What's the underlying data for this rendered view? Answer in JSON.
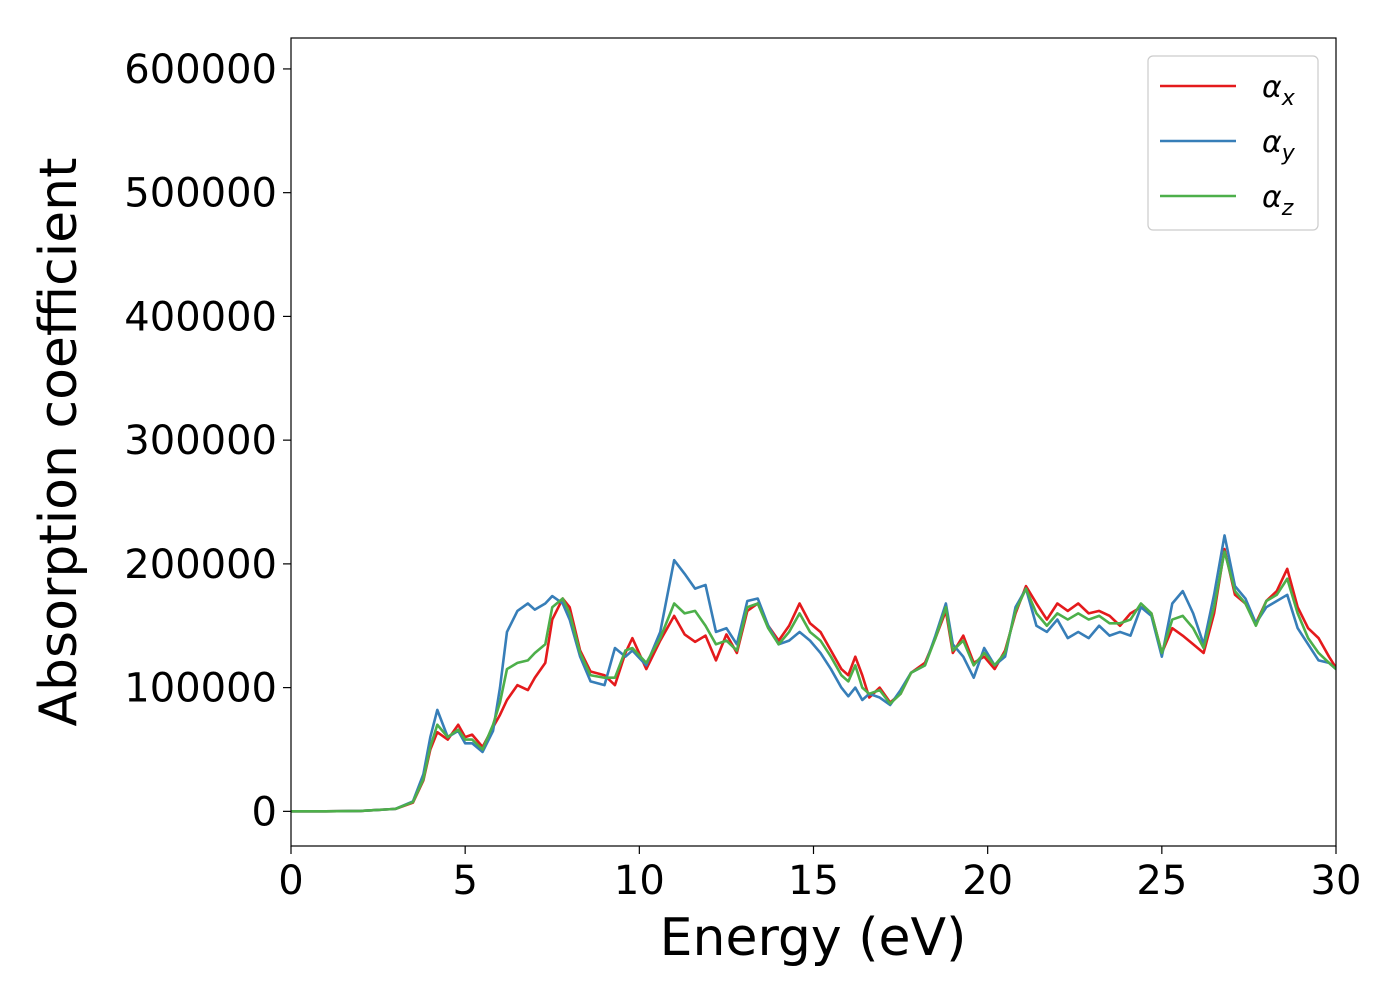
{
  "chart_data": {
    "type": "line",
    "title": "",
    "xlabel": "Energy (eV)",
    "ylabel": "Absorption coefficient",
    "xlim": [
      0,
      30
    ],
    "ylim": [
      -28000,
      625000
    ],
    "xticks": [
      0,
      5,
      10,
      15,
      20,
      25,
      30
    ],
    "yticks": [
      0,
      100000,
      200000,
      300000,
      400000,
      500000,
      600000
    ],
    "grid": false,
    "legend": {
      "position": "top-right",
      "entries": [
        {
          "base": "α",
          "sub": "x",
          "color": "#e41a1c"
        },
        {
          "base": "α",
          "sub": "y",
          "color": "#377eb8"
        },
        {
          "base": "α",
          "sub": "z",
          "color": "#4daf4a"
        }
      ]
    },
    "series": [
      {
        "name": "αx",
        "color": "#e41a1c",
        "points": [
          [
            0,
            0
          ],
          [
            1,
            0
          ],
          [
            2,
            300
          ],
          [
            3,
            2000
          ],
          [
            3.5,
            7000
          ],
          [
            3.8,
            25000
          ],
          [
            4.0,
            50000
          ],
          [
            4.2,
            64000
          ],
          [
            4.5,
            58000
          ],
          [
            4.8,
            70000
          ],
          [
            5.0,
            60000
          ],
          [
            5.2,
            62000
          ],
          [
            5.5,
            52000
          ],
          [
            5.8,
            68000
          ],
          [
            6.0,
            78000
          ],
          [
            6.2,
            90000
          ],
          [
            6.5,
            102000
          ],
          [
            6.8,
            98000
          ],
          [
            7.0,
            108000
          ],
          [
            7.3,
            120000
          ],
          [
            7.5,
            155000
          ],
          [
            7.8,
            172000
          ],
          [
            8.0,
            165000
          ],
          [
            8.3,
            130000
          ],
          [
            8.6,
            113000
          ],
          [
            9.0,
            110000
          ],
          [
            9.3,
            102000
          ],
          [
            9.6,
            128000
          ],
          [
            9.8,
            140000
          ],
          [
            10.2,
            115000
          ],
          [
            10.6,
            138000
          ],
          [
            11.0,
            158000
          ],
          [
            11.3,
            143000
          ],
          [
            11.6,
            137000
          ],
          [
            11.9,
            142000
          ],
          [
            12.2,
            122000
          ],
          [
            12.5,
            143000
          ],
          [
            12.8,
            128000
          ],
          [
            13.1,
            162000
          ],
          [
            13.4,
            168000
          ],
          [
            13.7,
            150000
          ],
          [
            14.0,
            138000
          ],
          [
            14.3,
            150000
          ],
          [
            14.6,
            168000
          ],
          [
            14.9,
            152000
          ],
          [
            15.2,
            145000
          ],
          [
            15.5,
            130000
          ],
          [
            15.8,
            115000
          ],
          [
            16.0,
            110000
          ],
          [
            16.2,
            125000
          ],
          [
            16.4,
            110000
          ],
          [
            16.6,
            92000
          ],
          [
            16.9,
            100000
          ],
          [
            17.2,
            88000
          ],
          [
            17.5,
            95000
          ],
          [
            17.8,
            112000
          ],
          [
            18.2,
            120000
          ],
          [
            18.5,
            140000
          ],
          [
            18.8,
            162000
          ],
          [
            19.0,
            128000
          ],
          [
            19.3,
            142000
          ],
          [
            19.6,
            120000
          ],
          [
            19.9,
            125000
          ],
          [
            20.2,
            115000
          ],
          [
            20.5,
            130000
          ],
          [
            20.8,
            160000
          ],
          [
            21.1,
            182000
          ],
          [
            21.4,
            168000
          ],
          [
            21.7,
            155000
          ],
          [
            22.0,
            168000
          ],
          [
            22.3,
            162000
          ],
          [
            22.6,
            168000
          ],
          [
            22.9,
            160000
          ],
          [
            23.2,
            162000
          ],
          [
            23.5,
            158000
          ],
          [
            23.8,
            150000
          ],
          [
            24.1,
            160000
          ],
          [
            24.4,
            165000
          ],
          [
            24.7,
            160000
          ],
          [
            25.0,
            128000
          ],
          [
            25.3,
            148000
          ],
          [
            25.6,
            142000
          ],
          [
            25.9,
            135000
          ],
          [
            26.2,
            128000
          ],
          [
            26.5,
            160000
          ],
          [
            26.8,
            212000
          ],
          [
            27.1,
            175000
          ],
          [
            27.4,
            168000
          ],
          [
            27.7,
            152000
          ],
          [
            28.0,
            170000
          ],
          [
            28.3,
            178000
          ],
          [
            28.6,
            196000
          ],
          [
            28.9,
            165000
          ],
          [
            29.2,
            148000
          ],
          [
            29.5,
            140000
          ],
          [
            29.8,
            125000
          ],
          [
            30.0,
            116000
          ]
        ]
      },
      {
        "name": "αy",
        "color": "#377eb8",
        "points": [
          [
            0,
            0
          ],
          [
            1,
            0
          ],
          [
            2,
            300
          ],
          [
            3,
            2000
          ],
          [
            3.5,
            8000
          ],
          [
            3.8,
            30000
          ],
          [
            4.0,
            60000
          ],
          [
            4.2,
            82000
          ],
          [
            4.5,
            60000
          ],
          [
            4.8,
            65000
          ],
          [
            5.0,
            55000
          ],
          [
            5.2,
            55000
          ],
          [
            5.5,
            48000
          ],
          [
            5.8,
            65000
          ],
          [
            6.0,
            100000
          ],
          [
            6.2,
            145000
          ],
          [
            6.5,
            162000
          ],
          [
            6.8,
            168000
          ],
          [
            7.0,
            163000
          ],
          [
            7.3,
            168000
          ],
          [
            7.5,
            174000
          ],
          [
            7.8,
            168000
          ],
          [
            8.0,
            155000
          ],
          [
            8.3,
            125000
          ],
          [
            8.6,
            105000
          ],
          [
            9.0,
            102000
          ],
          [
            9.3,
            132000
          ],
          [
            9.6,
            125000
          ],
          [
            9.8,
            130000
          ],
          [
            10.2,
            118000
          ],
          [
            10.6,
            145000
          ],
          [
            11.0,
            203000
          ],
          [
            11.3,
            192000
          ],
          [
            11.6,
            180000
          ],
          [
            11.9,
            183000
          ],
          [
            12.2,
            145000
          ],
          [
            12.5,
            148000
          ],
          [
            12.8,
            135000
          ],
          [
            13.1,
            170000
          ],
          [
            13.4,
            172000
          ],
          [
            13.7,
            150000
          ],
          [
            14.0,
            135000
          ],
          [
            14.3,
            138000
          ],
          [
            14.6,
            145000
          ],
          [
            14.9,
            138000
          ],
          [
            15.2,
            128000
          ],
          [
            15.5,
            115000
          ],
          [
            15.8,
            100000
          ],
          [
            16.0,
            93000
          ],
          [
            16.2,
            100000
          ],
          [
            16.4,
            90000
          ],
          [
            16.6,
            95000
          ],
          [
            16.9,
            92000
          ],
          [
            17.2,
            86000
          ],
          [
            17.5,
            98000
          ],
          [
            17.8,
            112000
          ],
          [
            18.2,
            118000
          ],
          [
            18.5,
            142000
          ],
          [
            18.8,
            168000
          ],
          [
            19.0,
            135000
          ],
          [
            19.3,
            125000
          ],
          [
            19.6,
            108000
          ],
          [
            19.9,
            132000
          ],
          [
            20.2,
            118000
          ],
          [
            20.5,
            125000
          ],
          [
            20.8,
            165000
          ],
          [
            21.1,
            180000
          ],
          [
            21.4,
            150000
          ],
          [
            21.7,
            145000
          ],
          [
            22.0,
            155000
          ],
          [
            22.3,
            140000
          ],
          [
            22.6,
            145000
          ],
          [
            22.9,
            140000
          ],
          [
            23.2,
            150000
          ],
          [
            23.5,
            142000
          ],
          [
            23.8,
            145000
          ],
          [
            24.1,
            142000
          ],
          [
            24.4,
            165000
          ],
          [
            24.7,
            158000
          ],
          [
            25.0,
            125000
          ],
          [
            25.3,
            168000
          ],
          [
            25.6,
            178000
          ],
          [
            25.9,
            160000
          ],
          [
            26.2,
            135000
          ],
          [
            26.5,
            175000
          ],
          [
            26.8,
            223000
          ],
          [
            27.1,
            182000
          ],
          [
            27.4,
            172000
          ],
          [
            27.7,
            152000
          ],
          [
            28.0,
            165000
          ],
          [
            28.3,
            170000
          ],
          [
            28.6,
            175000
          ],
          [
            28.9,
            148000
          ],
          [
            29.2,
            135000
          ],
          [
            29.5,
            122000
          ],
          [
            29.8,
            120000
          ],
          [
            30.0,
            115000
          ]
        ]
      },
      {
        "name": "αz",
        "color": "#4daf4a",
        "points": [
          [
            0,
            0
          ],
          [
            1,
            0
          ],
          [
            2,
            300
          ],
          [
            3,
            2000
          ],
          [
            3.5,
            7500
          ],
          [
            3.8,
            26000
          ],
          [
            4.0,
            52000
          ],
          [
            4.2,
            70000
          ],
          [
            4.5,
            60000
          ],
          [
            4.8,
            66000
          ],
          [
            5.0,
            58000
          ],
          [
            5.2,
            58000
          ],
          [
            5.5,
            50000
          ],
          [
            5.8,
            70000
          ],
          [
            6.0,
            88000
          ],
          [
            6.2,
            115000
          ],
          [
            6.5,
            120000
          ],
          [
            6.8,
            122000
          ],
          [
            7.0,
            128000
          ],
          [
            7.3,
            135000
          ],
          [
            7.5,
            165000
          ],
          [
            7.8,
            172000
          ],
          [
            8.0,
            160000
          ],
          [
            8.3,
            128000
          ],
          [
            8.6,
            110000
          ],
          [
            9.0,
            108000
          ],
          [
            9.3,
            108000
          ],
          [
            9.6,
            130000
          ],
          [
            9.8,
            132000
          ],
          [
            10.2,
            120000
          ],
          [
            10.6,
            140000
          ],
          [
            11.0,
            168000
          ],
          [
            11.3,
            160000
          ],
          [
            11.6,
            162000
          ],
          [
            11.9,
            150000
          ],
          [
            12.2,
            135000
          ],
          [
            12.5,
            138000
          ],
          [
            12.8,
            130000
          ],
          [
            13.1,
            165000
          ],
          [
            13.4,
            168000
          ],
          [
            13.7,
            148000
          ],
          [
            14.0,
            135000
          ],
          [
            14.3,
            145000
          ],
          [
            14.6,
            160000
          ],
          [
            14.9,
            145000
          ],
          [
            15.2,
            138000
          ],
          [
            15.5,
            125000
          ],
          [
            15.8,
            110000
          ],
          [
            16.0,
            105000
          ],
          [
            16.2,
            118000
          ],
          [
            16.4,
            100000
          ],
          [
            16.6,
            95000
          ],
          [
            16.9,
            98000
          ],
          [
            17.2,
            87000
          ],
          [
            17.5,
            95000
          ],
          [
            17.8,
            112000
          ],
          [
            18.2,
            118000
          ],
          [
            18.5,
            140000
          ],
          [
            18.8,
            165000
          ],
          [
            19.0,
            130000
          ],
          [
            19.3,
            138000
          ],
          [
            19.6,
            118000
          ],
          [
            19.9,
            128000
          ],
          [
            20.2,
            118000
          ],
          [
            20.5,
            128000
          ],
          [
            20.8,
            162000
          ],
          [
            21.1,
            180000
          ],
          [
            21.4,
            160000
          ],
          [
            21.7,
            150000
          ],
          [
            22.0,
            160000
          ],
          [
            22.3,
            155000
          ],
          [
            22.6,
            160000
          ],
          [
            22.9,
            155000
          ],
          [
            23.2,
            158000
          ],
          [
            23.5,
            152000
          ],
          [
            23.8,
            152000
          ],
          [
            24.1,
            155000
          ],
          [
            24.4,
            168000
          ],
          [
            24.7,
            160000
          ],
          [
            25.0,
            128000
          ],
          [
            25.3,
            155000
          ],
          [
            25.6,
            158000
          ],
          [
            25.9,
            148000
          ],
          [
            26.2,
            132000
          ],
          [
            26.5,
            165000
          ],
          [
            26.8,
            210000
          ],
          [
            27.1,
            178000
          ],
          [
            27.4,
            168000
          ],
          [
            27.7,
            150000
          ],
          [
            28.0,
            170000
          ],
          [
            28.3,
            175000
          ],
          [
            28.6,
            188000
          ],
          [
            28.9,
            160000
          ],
          [
            29.2,
            140000
          ],
          [
            29.5,
            128000
          ],
          [
            29.8,
            120000
          ],
          [
            30.0,
            115000
          ]
        ]
      }
    ]
  }
}
